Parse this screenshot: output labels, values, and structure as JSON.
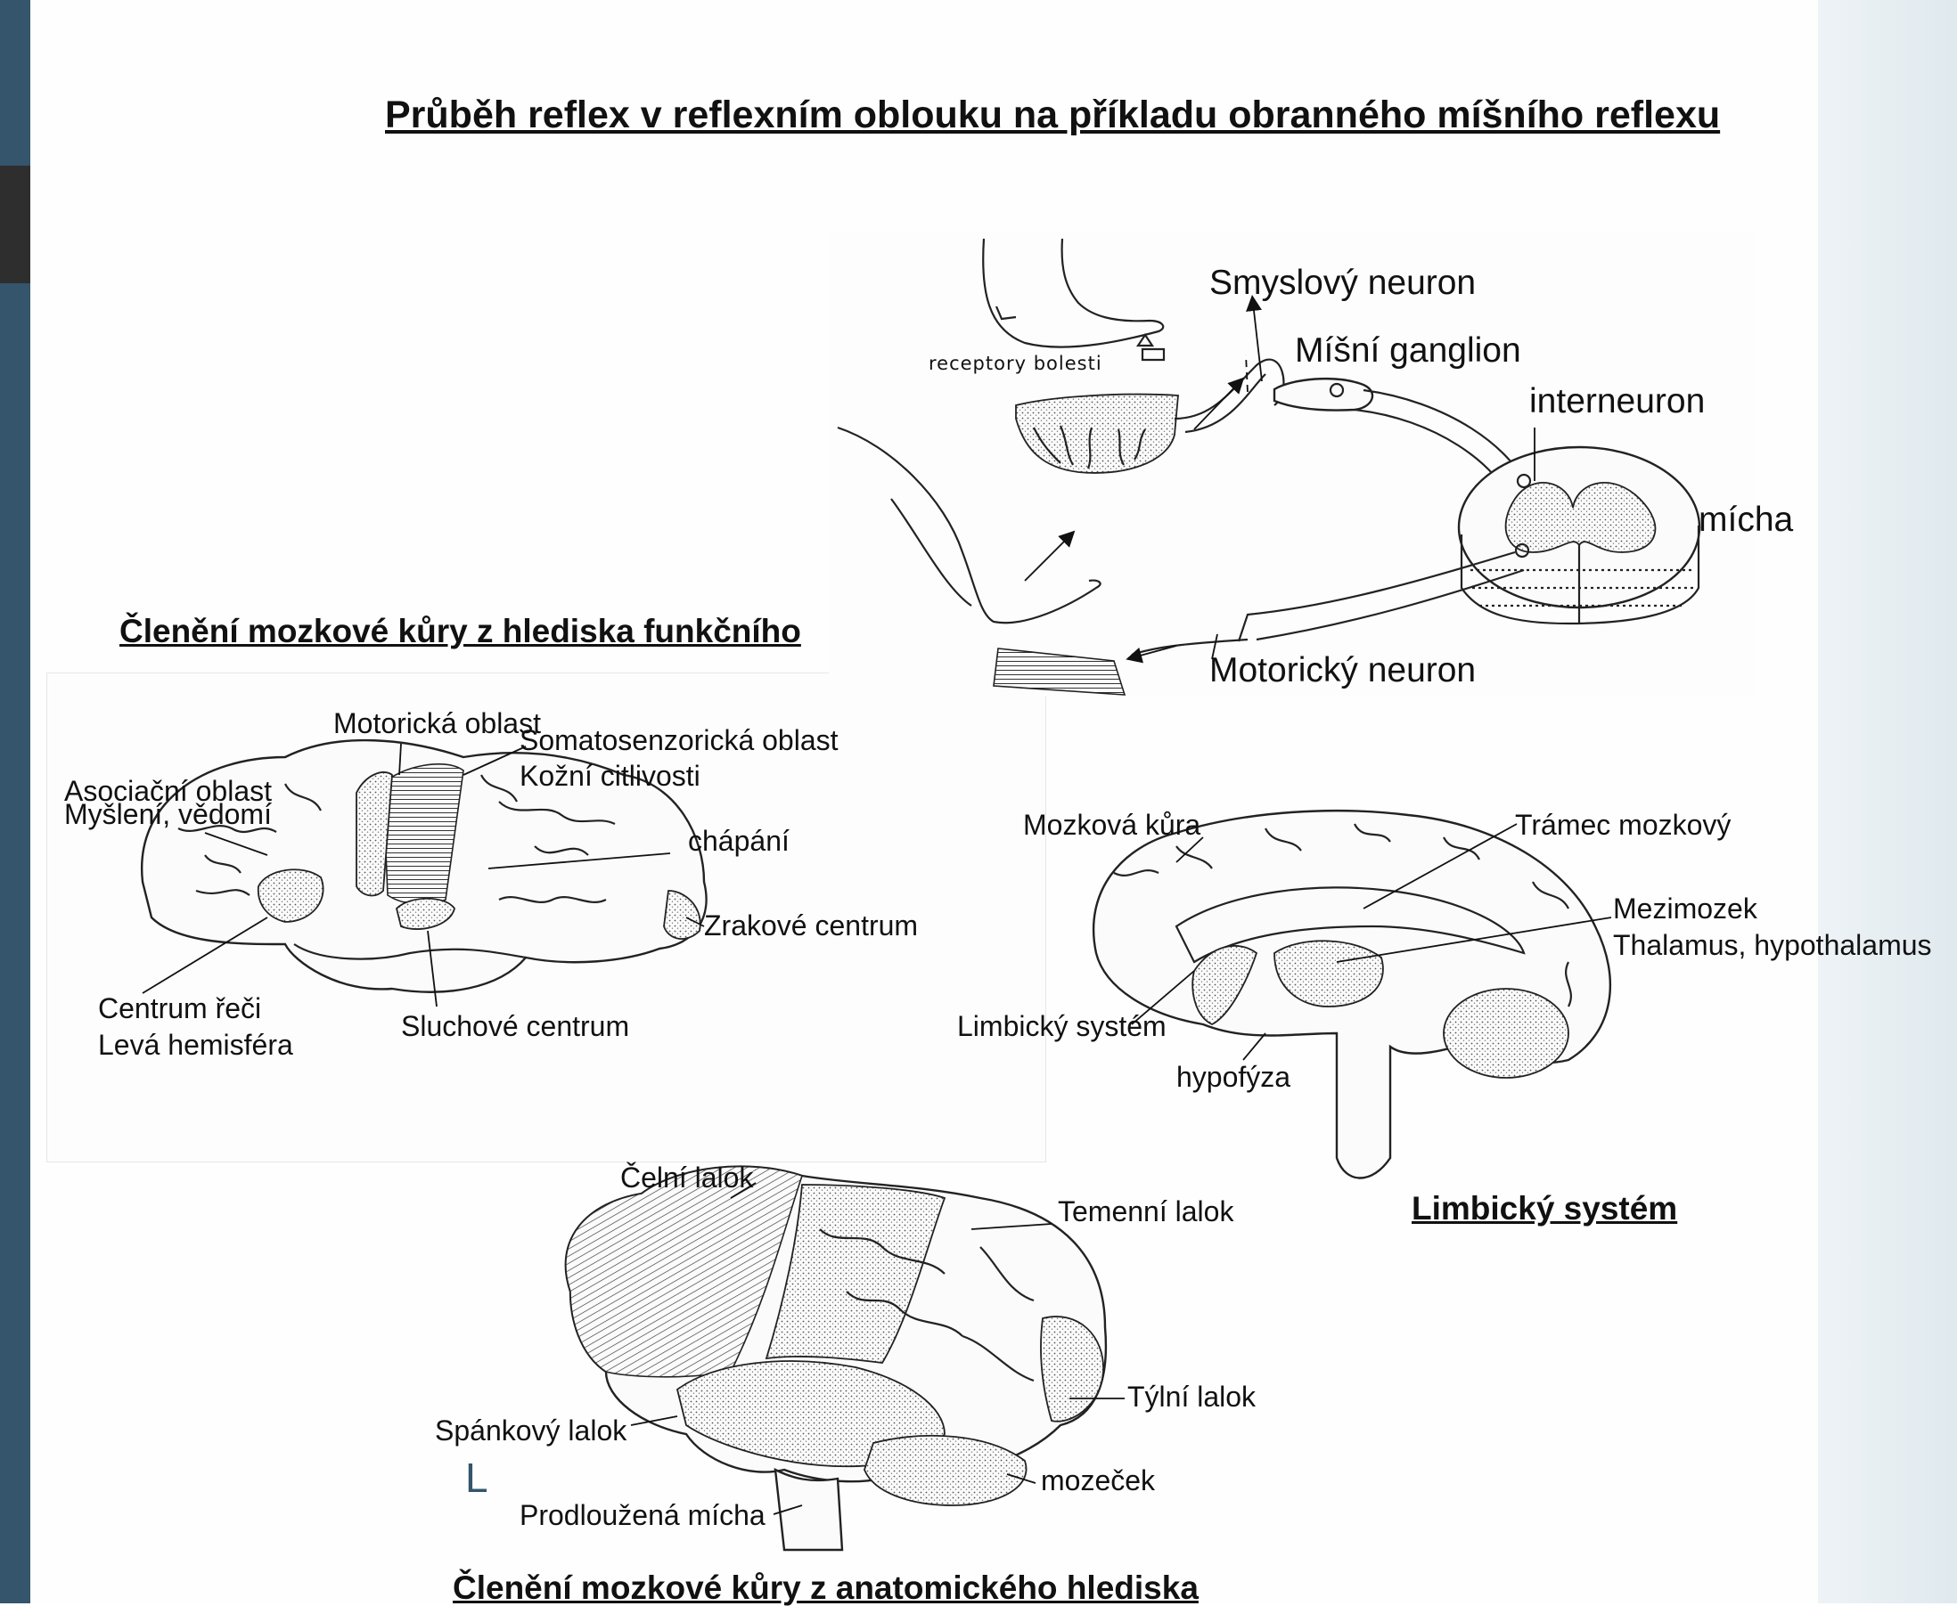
{
  "title": "Průběh reflex v reflexním oblouku na příkladu obranného míšního reflexu",
  "reflex_diagram": {
    "receptors_caption": "receptory bolesti",
    "labels": {
      "sensory_neuron": "Smyslový neuron",
      "spinal_ganglion": "Míšní ganglion",
      "interneuron": "interneuron",
      "spinal_cord": "mícha",
      "motor_neuron": "Motorický neuron"
    }
  },
  "functional_section": {
    "heading": "Členění mozkové kůry z hlediska funkčního",
    "labels": {
      "motor_area": "Motorická oblast",
      "somatosensory_area": "Somatosenzorická oblast",
      "skin_sensitivity": "Kožní citlivosti",
      "association_area": "Asociační oblast",
      "thinking": "Myšlení, vědomí",
      "comprehension": "chápání",
      "visual_center": "Zrakové centrum",
      "speech_center": "Centrum řeči",
      "left_hemisphere": "Levá hemisféra",
      "auditory_center": "Sluchové centrum"
    }
  },
  "limbic_section": {
    "heading": "Limbický systém",
    "labels": {
      "cortex": "Mozková kůra",
      "corpus_callosum": "Trámec mozkový",
      "diencephalon": "Mezimozek",
      "thalamus": "Thalamus, hypothalamus",
      "limbic_system": "Limbický systém",
      "pituitary": "hypofýza"
    }
  },
  "anatomical_section": {
    "heading": "Členění mozkové kůry z anatomického hlediska",
    "labels": {
      "frontal_lobe": "Čelní lalok",
      "parietal_lobe": "Temenní lalok",
      "occipital_lobe": "Týlní lalok",
      "temporal_lobe": "Spánkový lalok",
      "cerebellum": "mozeček",
      "medulla": "Prodloužená mícha"
    },
    "side_mark": "L"
  },
  "colors": {
    "left_bar": "#34556b",
    "dark_tab": "#2e2e2e",
    "right_band": "#dfe9ee",
    "ink": "#111111"
  }
}
